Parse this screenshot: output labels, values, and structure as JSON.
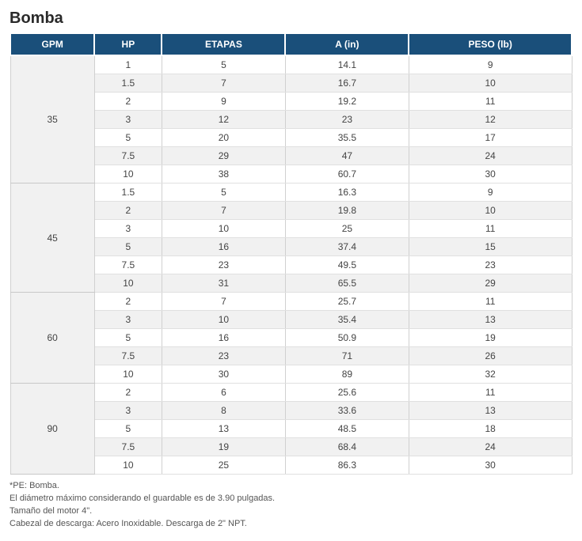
{
  "title": "Bomba",
  "table": {
    "columns": [
      "GPM",
      "HP",
      "ETAPAS",
      "A (in)",
      "PESO (lb)"
    ],
    "header_bg": "#1a4f7a",
    "header_fg": "#ffffff",
    "row_alt_bg": "#f1f1f1",
    "row_bg": "#ffffff",
    "border_color": "#d0d0d0",
    "groups": [
      {
        "gpm": "35",
        "rows": [
          {
            "hp": "1",
            "etapas": "5",
            "a": "14.1",
            "peso": "9"
          },
          {
            "hp": "1.5",
            "etapas": "7",
            "a": "16.7",
            "peso": "10"
          },
          {
            "hp": "2",
            "etapas": "9",
            "a": "19.2",
            "peso": "11"
          },
          {
            "hp": "3",
            "etapas": "12",
            "a": "23",
            "peso": "12"
          },
          {
            "hp": "5",
            "etapas": "20",
            "a": "35.5",
            "peso": "17"
          },
          {
            "hp": "7.5",
            "etapas": "29",
            "a": "47",
            "peso": "24"
          },
          {
            "hp": "10",
            "etapas": "38",
            "a": "60.7",
            "peso": "30"
          }
        ]
      },
      {
        "gpm": "45",
        "rows": [
          {
            "hp": "1.5",
            "etapas": "5",
            "a": "16.3",
            "peso": "9"
          },
          {
            "hp": "2",
            "etapas": "7",
            "a": "19.8",
            "peso": "10"
          },
          {
            "hp": "3",
            "etapas": "10",
            "a": "25",
            "peso": "11"
          },
          {
            "hp": "5",
            "etapas": "16",
            "a": "37.4",
            "peso": "15"
          },
          {
            "hp": "7.5",
            "etapas": "23",
            "a": "49.5",
            "peso": "23"
          },
          {
            "hp": "10",
            "etapas": "31",
            "a": "65.5",
            "peso": "29"
          }
        ]
      },
      {
        "gpm": "60",
        "rows": [
          {
            "hp": "2",
            "etapas": "7",
            "a": "25.7",
            "peso": "11"
          },
          {
            "hp": "3",
            "etapas": "10",
            "a": "35.4",
            "peso": "13"
          },
          {
            "hp": "5",
            "etapas": "16",
            "a": "50.9",
            "peso": "19"
          },
          {
            "hp": "7.5",
            "etapas": "23",
            "a": "71",
            "peso": "26"
          },
          {
            "hp": "10",
            "etapas": "30",
            "a": "89",
            "peso": "32"
          }
        ]
      },
      {
        "gpm": "90",
        "rows": [
          {
            "hp": "2",
            "etapas": "6",
            "a": "25.6",
            "peso": "11"
          },
          {
            "hp": "3",
            "etapas": "8",
            "a": "33.6",
            "peso": "13"
          },
          {
            "hp": "5",
            "etapas": "13",
            "a": "48.5",
            "peso": "18"
          },
          {
            "hp": "7.5",
            "etapas": "19",
            "a": "68.4",
            "peso": "24"
          },
          {
            "hp": "10",
            "etapas": "25",
            "a": "86.3",
            "peso": "30"
          }
        ]
      }
    ]
  },
  "notes": [
    "*PE: Bomba.",
    "El diámetro máximo considerando el guardable es de 3.90 pulgadas.",
    "Tamaño del motor 4\".",
    "Cabezal de descarga: Acero Inoxidable. Descarga de 2\" NPT."
  ]
}
